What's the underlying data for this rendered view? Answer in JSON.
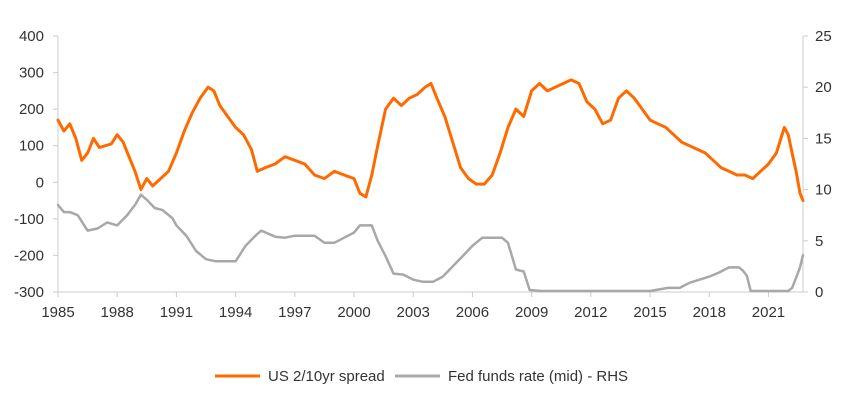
{
  "chart_data": {
    "type": "line",
    "title": "",
    "xlabel": "",
    "x_ticks": [
      "1985",
      "1988",
      "1991",
      "1994",
      "1997",
      "2000",
      "2003",
      "2006",
      "2009",
      "2012",
      "2015",
      "2018",
      "2021"
    ],
    "xlim": [
      1985,
      2022.75
    ],
    "y_left": {
      "label": "",
      "lim": [
        -300,
        400
      ],
      "ticks": [
        "400",
        "300",
        "200",
        "100",
        "0",
        "-100",
        "-200",
        "-300"
      ]
    },
    "y_right": {
      "label": "",
      "lim": [
        0,
        25
      ],
      "ticks": [
        "25",
        "20",
        "15",
        "10",
        "5",
        "0"
      ]
    },
    "colors": {
      "spread": "#ff6a00",
      "fed": "#a8a8a8",
      "axis": "#cccccc"
    },
    "series": [
      {
        "name": "US 2/10yr spread",
        "axis": "left",
        "x": [
          1985.0,
          1985.3,
          1985.6,
          1985.9,
          1986.2,
          1986.5,
          1986.8,
          1987.1,
          1987.4,
          1987.7,
          1988.0,
          1988.3,
          1988.6,
          1988.9,
          1989.2,
          1989.5,
          1989.8,
          1990.2,
          1990.6,
          1991.0,
          1991.4,
          1991.8,
          1992.2,
          1992.6,
          1992.9,
          1993.2,
          1993.6,
          1994.0,
          1994.4,
          1994.8,
          1995.1,
          1995.5,
          1996.0,
          1996.5,
          1997.0,
          1997.5,
          1998.0,
          1998.5,
          1999.0,
          1999.5,
          2000.0,
          2000.3,
          2000.6,
          2000.9,
          2001.2,
          2001.6,
          2002.0,
          2002.4,
          2002.8,
          2003.2,
          2003.6,
          2003.9,
          2004.2,
          2004.6,
          2005.0,
          2005.4,
          2005.8,
          2006.2,
          2006.6,
          2007.0,
          2007.4,
          2007.8,
          2008.2,
          2008.6,
          2009.0,
          2009.4,
          2009.8,
          2010.2,
          2010.6,
          2011.0,
          2011.4,
          2011.8,
          2012.2,
          2012.6,
          2013.0,
          2013.4,
          2013.8,
          2014.2,
          2014.6,
          2015.0,
          2015.4,
          2015.8,
          2016.2,
          2016.6,
          2017.0,
          2017.4,
          2017.8,
          2018.2,
          2018.6,
          2019.0,
          2019.4,
          2019.8,
          2020.2,
          2020.6,
          2021.0,
          2021.4,
          2021.8,
          2022.0,
          2022.2,
          2022.4,
          2022.6,
          2022.75
        ],
        "values": [
          170,
          140,
          160,
          120,
          60,
          80,
          120,
          95,
          100,
          105,
          130,
          110,
          70,
          30,
          -20,
          10,
          -10,
          10,
          30,
          80,
          140,
          190,
          230,
          260,
          250,
          210,
          180,
          150,
          130,
          90,
          30,
          40,
          50,
          70,
          60,
          50,
          20,
          10,
          30,
          20,
          10,
          -30,
          -40,
          20,
          100,
          200,
          230,
          210,
          230,
          240,
          260,
          270,
          230,
          180,
          110,
          40,
          10,
          -5,
          -5,
          20,
          80,
          150,
          200,
          180,
          250,
          270,
          250,
          260,
          270,
          280,
          270,
          220,
          200,
          160,
          170,
          230,
          250,
          230,
          200,
          170,
          160,
          150,
          130,
          110,
          100,
          90,
          80,
          60,
          40,
          30,
          20,
          20,
          10,
          30,
          50,
          80,
          150,
          130,
          80,
          30,
          -30,
          -50
        ]
      },
      {
        "name": "Fed funds rate (mid) - RHS",
        "axis": "right",
        "x": [
          1985.0,
          1985.3,
          1985.6,
          1986.0,
          1986.5,
          1987.0,
          1987.5,
          1988.0,
          1988.5,
          1988.9,
          1989.2,
          1989.5,
          1989.9,
          1990.3,
          1990.8,
          1991.0,
          1991.5,
          1992.0,
          1992.5,
          1993.0,
          1993.5,
          1994.0,
          1994.5,
          1995.0,
          1995.3,
          1996.0,
          1996.5,
          1997.0,
          1998.0,
          1998.5,
          1999.0,
          1999.5,
          2000.0,
          2000.3,
          2000.5,
          2000.9,
          2001.2,
          2001.6,
          2002.0,
          2002.5,
          2003.0,
          2003.5,
          2004.0,
          2004.5,
          2005.0,
          2005.5,
          2006.0,
          2006.5,
          2007.0,
          2007.5,
          2007.8,
          2008.2,
          2008.6,
          2008.9,
          2009.5,
          2012.0,
          2015.0,
          2015.9,
          2016.5,
          2017.0,
          2017.5,
          2018.0,
          2018.5,
          2019.0,
          2019.5,
          2019.7,
          2019.9,
          2020.1,
          2020.3,
          2021.0,
          2021.5,
          2022.0,
          2022.2,
          2022.4,
          2022.6,
          2022.75
        ],
        "values": [
          8.5,
          7.8,
          7.8,
          7.5,
          6.0,
          6.2,
          6.8,
          6.5,
          7.5,
          8.5,
          9.5,
          9.0,
          8.2,
          8.0,
          7.2,
          6.5,
          5.5,
          4.0,
          3.2,
          3.0,
          3.0,
          3.0,
          4.5,
          5.5,
          6.0,
          5.4,
          5.3,
          5.5,
          5.5,
          4.8,
          4.8,
          5.3,
          5.8,
          6.5,
          6.5,
          6.5,
          5.0,
          3.5,
          1.8,
          1.7,
          1.2,
          1.0,
          1.0,
          1.5,
          2.5,
          3.5,
          4.5,
          5.3,
          5.3,
          5.3,
          4.8,
          2.2,
          2.0,
          0.2,
          0.1,
          0.1,
          0.1,
          0.4,
          0.4,
          0.9,
          1.2,
          1.5,
          1.9,
          2.4,
          2.4,
          2.1,
          1.6,
          0.1,
          0.1,
          0.1,
          0.1,
          0.1,
          0.4,
          1.4,
          2.4,
          3.6
        ]
      }
    ]
  },
  "legend": {
    "spread_label": "US 2/10yr spread",
    "fed_label": "Fed funds rate (mid) - RHS"
  }
}
